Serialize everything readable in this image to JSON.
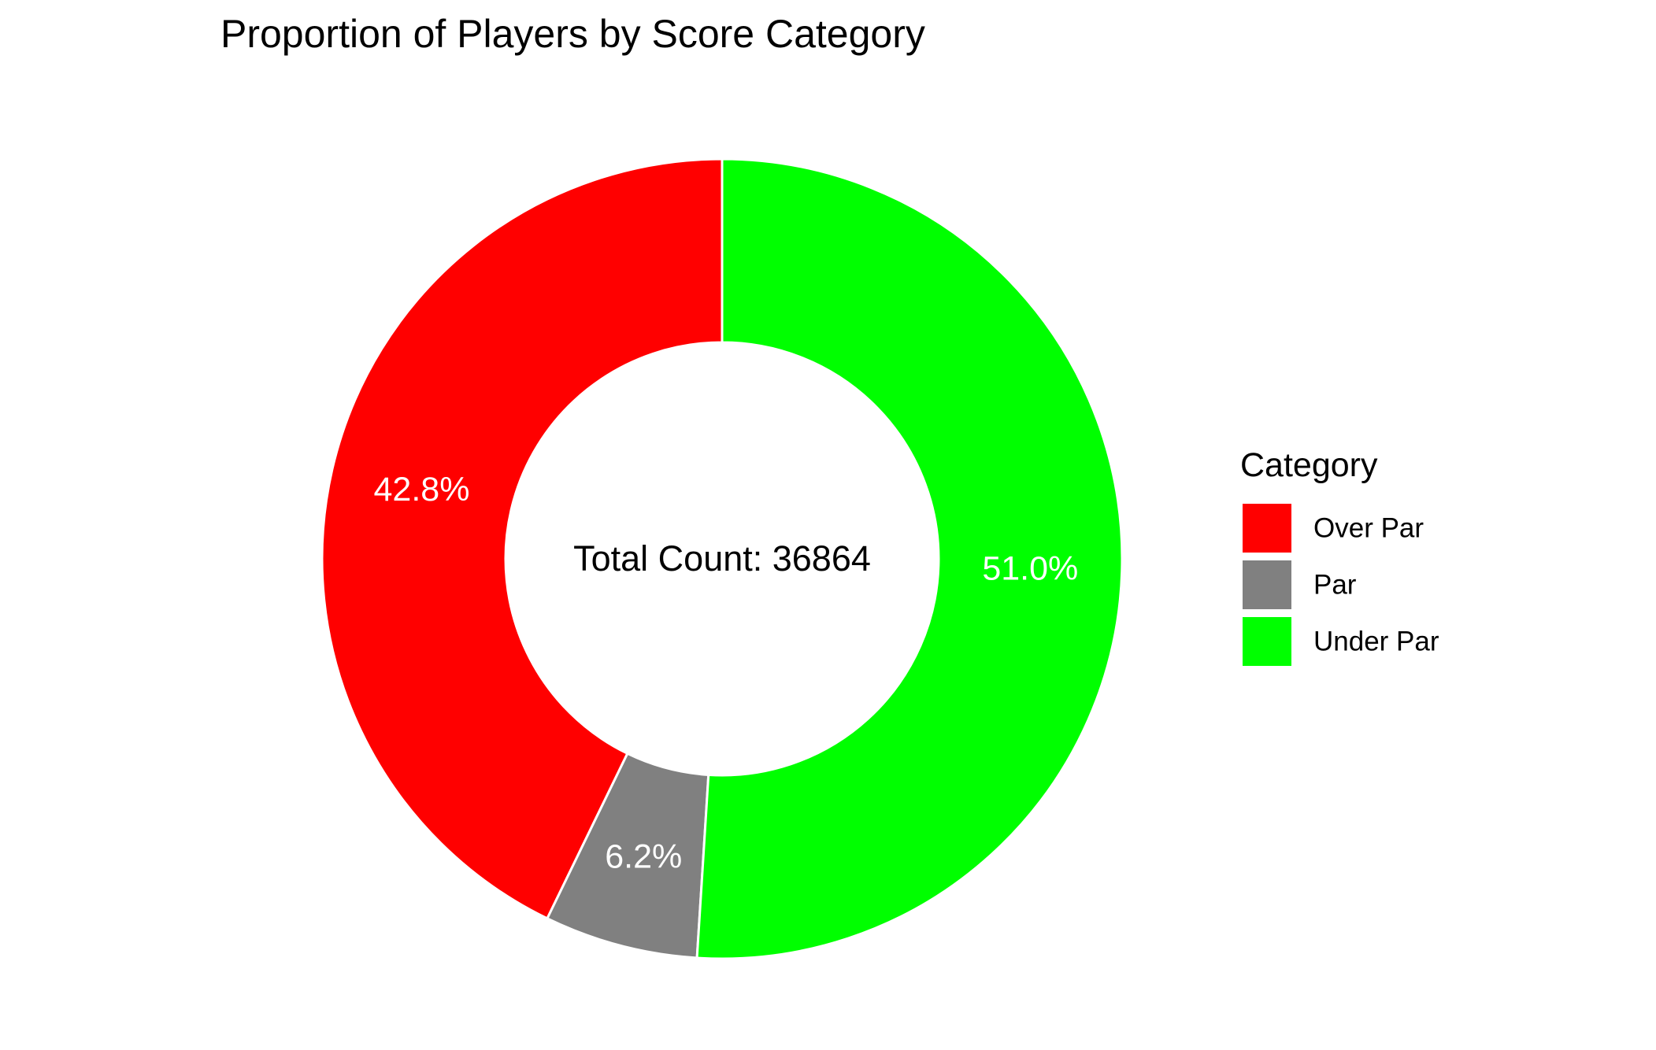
{
  "chart_data": {
    "type": "pie",
    "variant": "donut",
    "title": "Proportion of Players by Score Category",
    "center_label": "Total Count: 36864",
    "total": 36864,
    "categories": [
      "Over Par",
      "Par",
      "Under Par"
    ],
    "values": [
      42.8,
      6.2,
      51.0
    ],
    "value_labels": [
      "42.8%",
      "6.2%",
      "51.0%"
    ],
    "colors": [
      "#ff0000",
      "#808080",
      "#00ff00"
    ],
    "direction": "counterclockwise from top",
    "legend": {
      "title": "Category",
      "position": "right",
      "items": [
        {
          "label": "Over Par",
          "color": "#ff0000"
        },
        {
          "label": "Par",
          "color": "#808080"
        },
        {
          "label": "Under Par",
          "color": "#00ff00"
        }
      ]
    }
  }
}
